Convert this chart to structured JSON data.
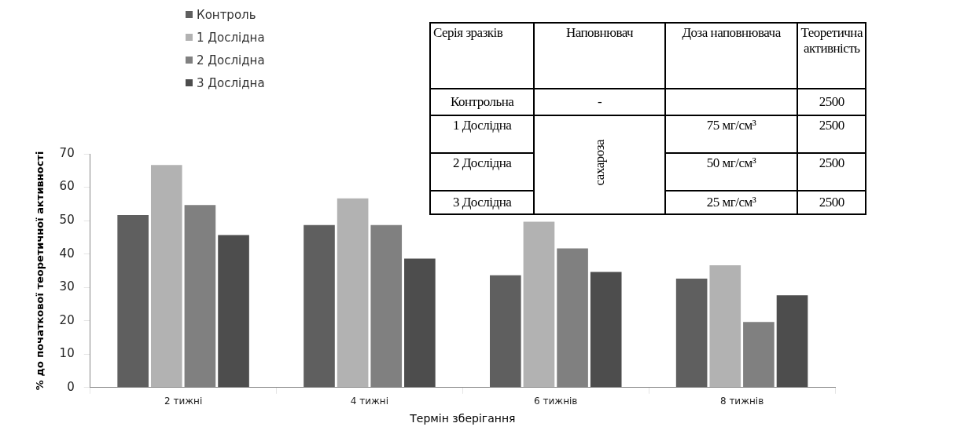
{
  "chart_data": {
    "type": "bar",
    "xlabel": "Термін зберігання",
    "ylabel": "% до початкової теоретичної активності",
    "categories": [
      "2 тижні",
      "4 тижні",
      "6 тижнів",
      "8 тижнів"
    ],
    "series": [
      {
        "name": "Контроль",
        "color": "#5f5f5f",
        "values": [
          52,
          49,
          34,
          33
        ]
      },
      {
        "name": "1 Дослідна",
        "color": "#b2b2b2",
        "values": [
          67,
          57,
          50,
          37
        ]
      },
      {
        "name": "2 Дослідна",
        "color": "#808080",
        "values": [
          55,
          49,
          42,
          20
        ]
      },
      {
        "name": "3 Дослідна",
        "color": "#4d4d4d",
        "values": [
          46,
          39,
          35,
          28
        ]
      }
    ],
    "ylim": [
      0,
      70
    ],
    "yticks": [
      0,
      10,
      20,
      30,
      40,
      50,
      60,
      70
    ],
    "grid": false,
    "legend": "top left",
    "annotations": [
      "Серія зразків",
      "Наповнювач",
      "Доза наповнювача",
      "Теоретична активність",
      "Контрольна",
      "-",
      "2500",
      "1 Дослідна",
      "сахароза",
      "75 мг/см³",
      "2500",
      "2 Дослідна",
      "50 мг/см³",
      "2500",
      "3 Дослідна",
      "25 мг/см³",
      "2500"
    ]
  }
}
